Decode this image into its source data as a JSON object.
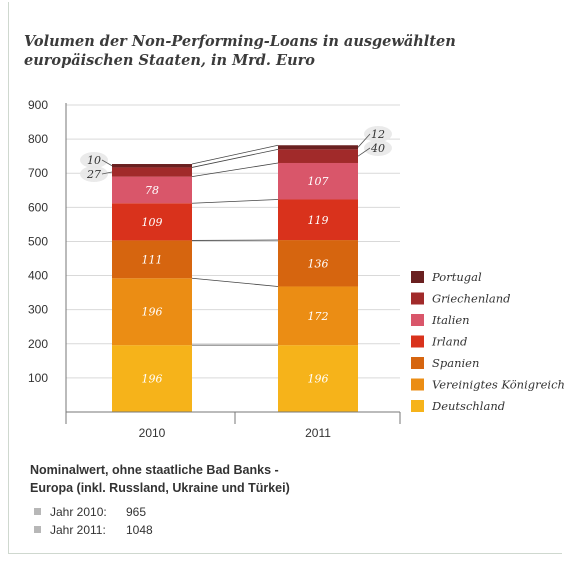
{
  "chart_data": {
    "type": "bar",
    "stacked": true,
    "title": "Volumen der Non-Performing-Loans in ausgewählten europäischen Staaten, in Mrd. Euro",
    "categories": [
      "2010",
      "2011"
    ],
    "ylim": [
      0,
      900
    ],
    "yticks": [
      900,
      800,
      700,
      600,
      500,
      400,
      300,
      200,
      100
    ],
    "grid": true,
    "legend_position": "right",
    "series": [
      {
        "name": "Deutschland",
        "values": [
          196,
          196
        ],
        "color": "#f6b31a"
      },
      {
        "name": "Vereinigtes Königreich",
        "values": [
          196,
          172
        ],
        "color": "#eb8d14"
      },
      {
        "name": "Spanien",
        "values": [
          111,
          136
        ],
        "color": "#d6650f"
      },
      {
        "name": "Irland",
        "values": [
          109,
          119
        ],
        "color": "#d9321c"
      },
      {
        "name": "Italien",
        "values": [
          78,
          107
        ],
        "color": "#d9566a"
      },
      {
        "name": "Griechenland",
        "values": [
          27,
          40
        ],
        "color": "#a12a2a"
      },
      {
        "name": "Portugal",
        "values": [
          10,
          12
        ],
        "color": "#6a2020"
      }
    ]
  },
  "footnote": {
    "line1": "Nominalwert, ohne staatliche Bad Banks -",
    "line2": "Europa (inkl. Russland, Ukraine und Türkei)"
  },
  "totals": [
    {
      "label": "Jahr 2010:",
      "value": "965"
    },
    {
      "label": "Jahr 2011:",
      "value": "1048"
    }
  ]
}
